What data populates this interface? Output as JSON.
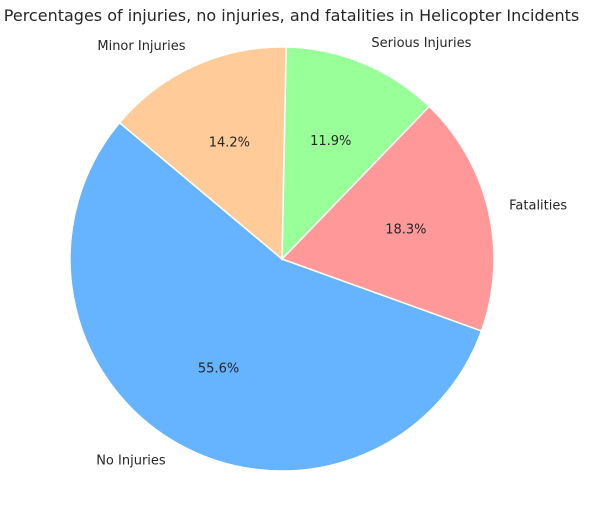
{
  "chart_data": {
    "type": "pie",
    "title": "Percentages of injuries, no injuries, and fatalities in Helicopter Incidents",
    "slices": [
      {
        "label": "No Injuries",
        "value": 55.6,
        "value_label": "55.6%",
        "color": "#66b3ff"
      },
      {
        "label": "Fatalities",
        "value": 18.3,
        "value_label": "18.3%",
        "color": "#ff9999"
      },
      {
        "label": "Serious Injuries",
        "value": 11.9,
        "value_label": "11.9%",
        "color": "#99ff99"
      },
      {
        "label": "Minor Injuries",
        "value": 14.2,
        "value_label": "14.2%",
        "color": "#ffcc99"
      }
    ],
    "start_angle": 140,
    "direction": "counterclockwise",
    "legend": "none"
  }
}
